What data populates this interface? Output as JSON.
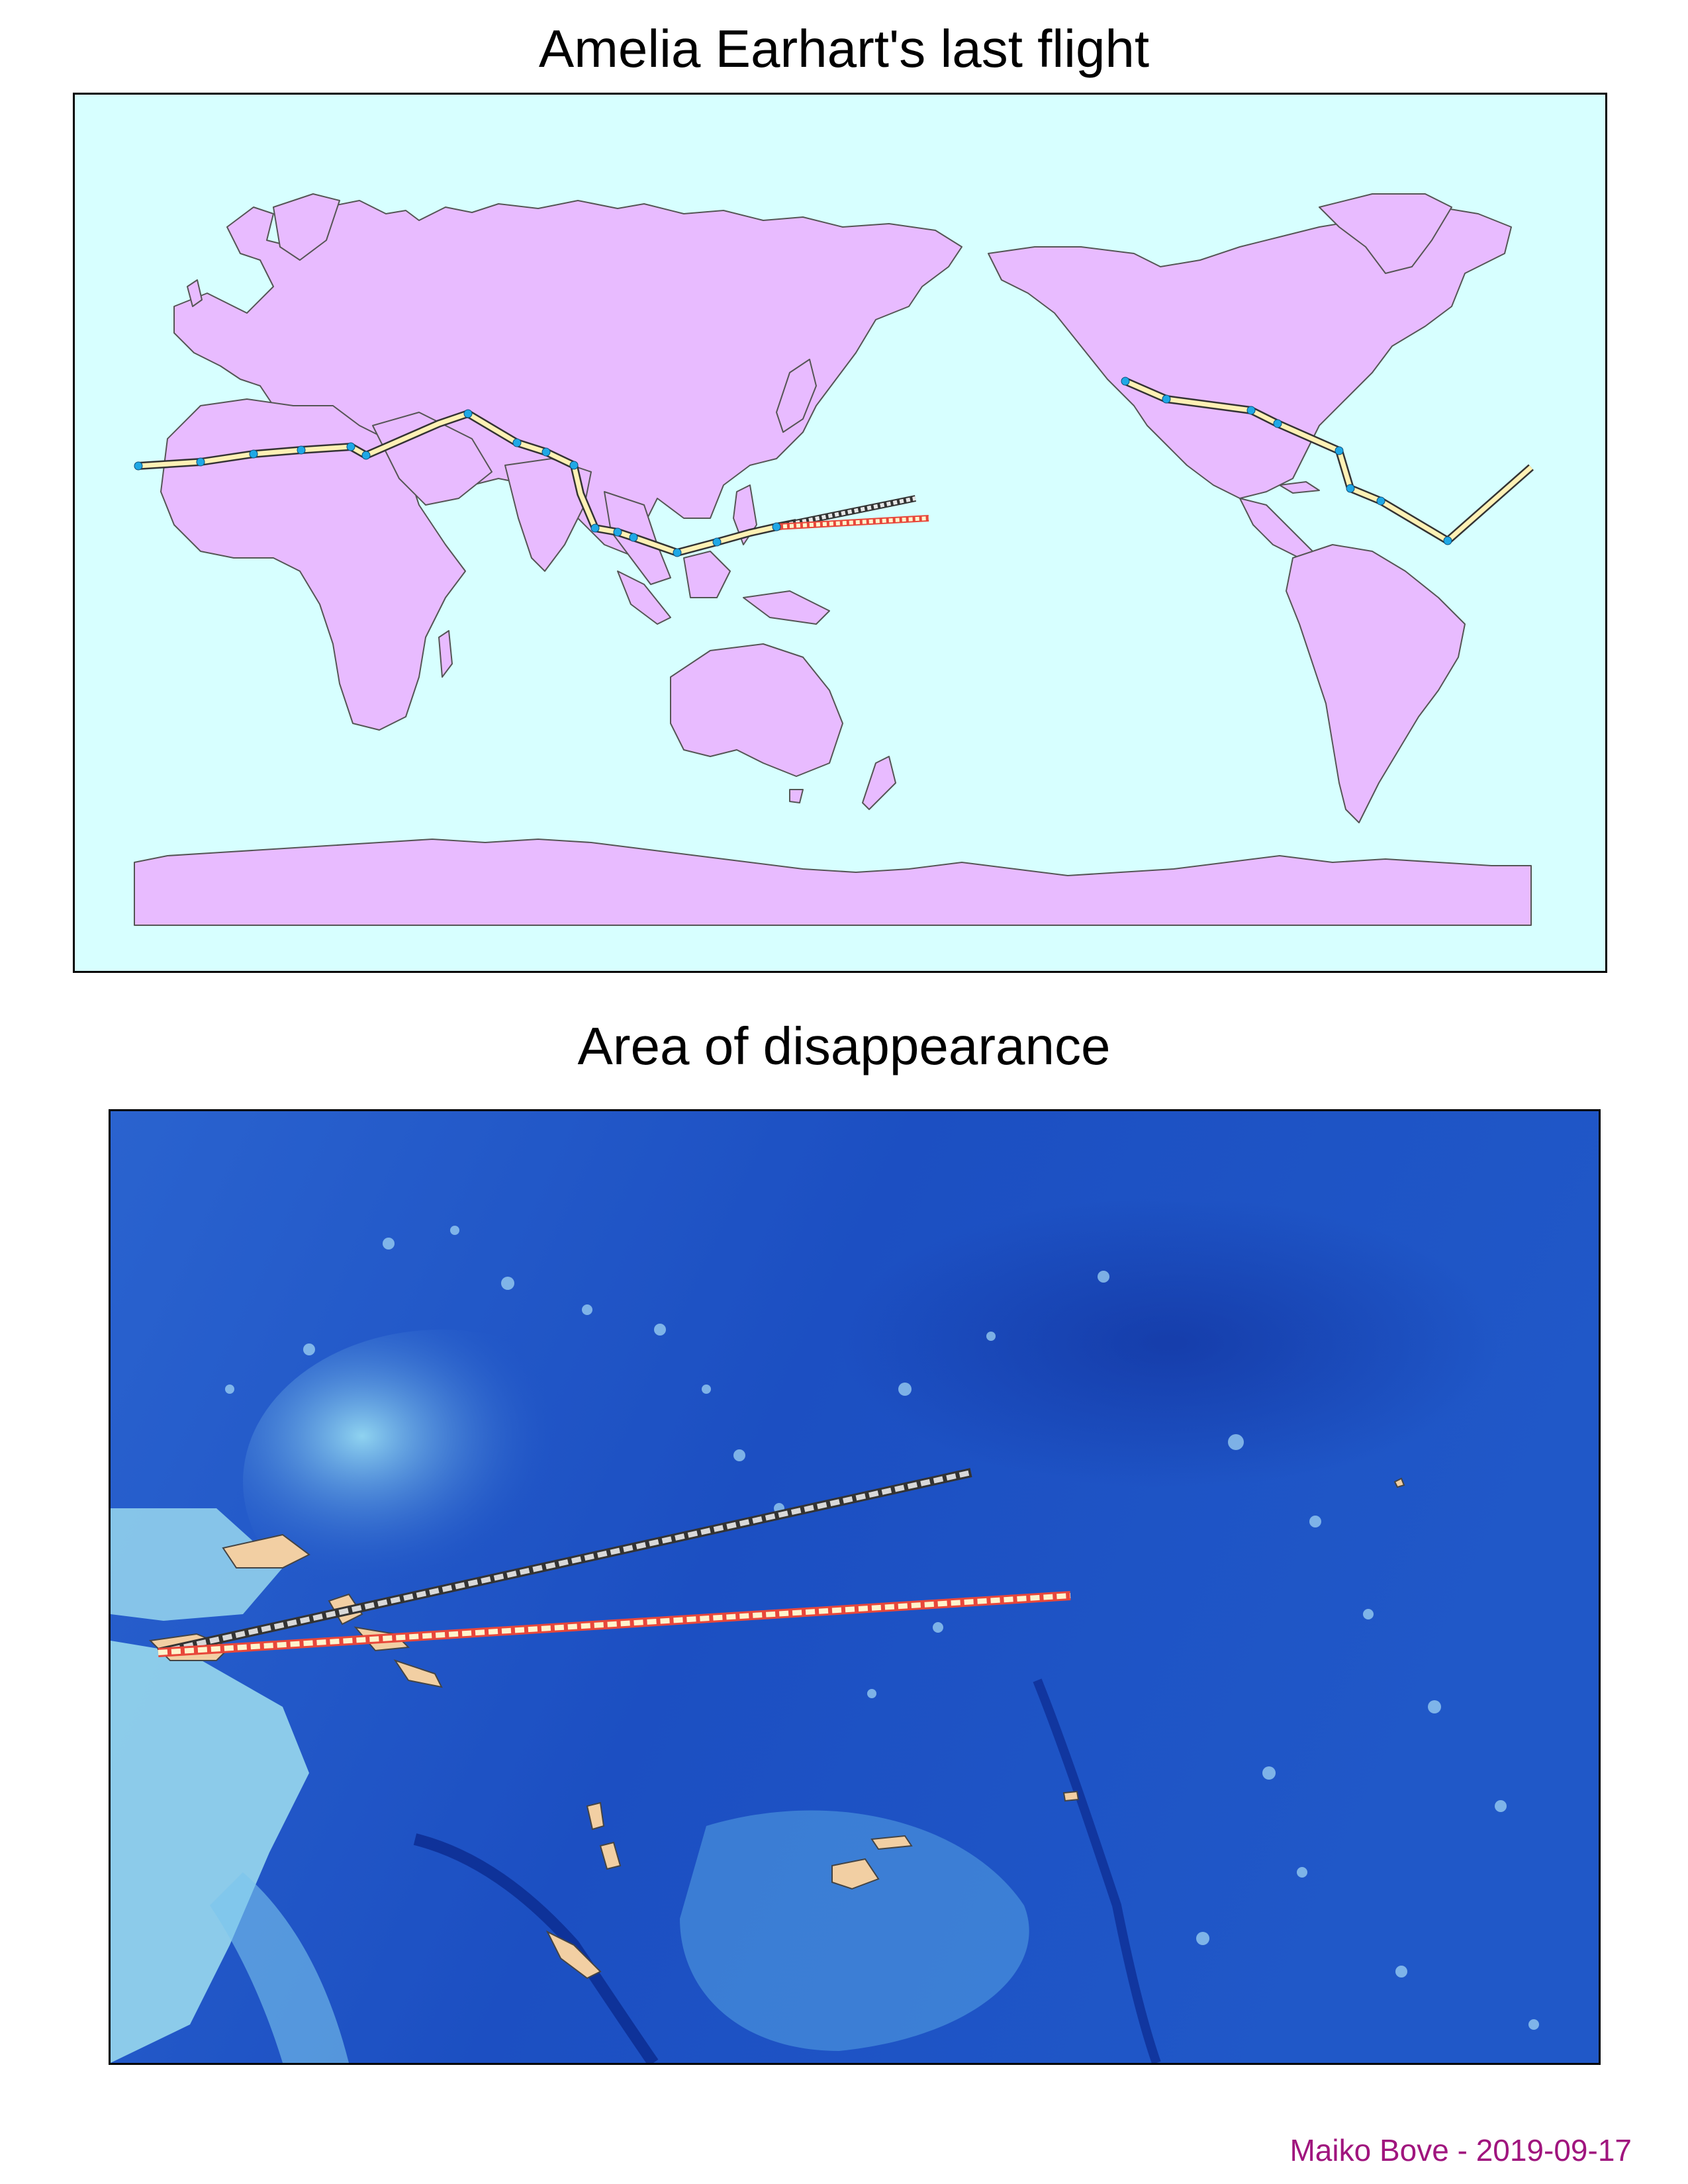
{
  "titles": {
    "world": "Amelia Earhart's last flight",
    "detail": "Area of disappearance"
  },
  "credit": {
    "author": "Maiko Bove",
    "separator": " - ",
    "date": "2019-09-17"
  },
  "colors": {
    "ocean": "#d7ffff",
    "land": "#e8bbff",
    "coastline": "#555555",
    "route": "#fff1b5",
    "route_casing": "#333333",
    "waypoint": "#1fa8e6",
    "search_line_gray": "#d9d9d9",
    "search_line_red": "#e8473a",
    "search_line_fill": "#fff4cc",
    "deep_ocean": "#0e2f9e",
    "shallow_ocean": "#b8f1f0",
    "island": "#f2cfa3",
    "credit": "#a0157e"
  },
  "legend": {
    "route_icon": "solid-route-line",
    "waypoint_icon": "circle-waypoint",
    "search_icon": "dashed-bearing-line"
  }
}
